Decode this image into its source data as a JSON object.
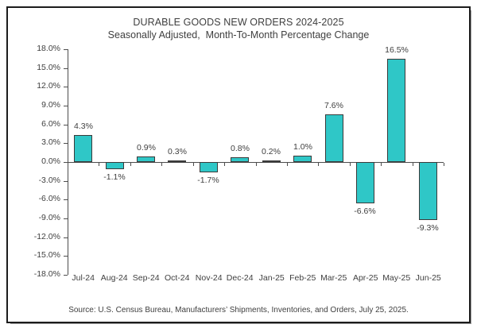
{
  "chart_data": {
    "type": "bar",
    "title": "DURABLE GOODS NEW ORDERS 2024-2025",
    "subtitle": "Seasonally Adjusted,  Month-To-Month Percentage Change",
    "categories": [
      "Jul-24",
      "Aug-24",
      "Sep-24",
      "Oct-24",
      "Nov-24",
      "Dec-24",
      "Jan-25",
      "Feb-25",
      "Mar-25",
      "Apr-25",
      "May-25",
      "Jun-25"
    ],
    "values": [
      4.3,
      -1.1,
      0.9,
      0.3,
      -1.7,
      0.8,
      0.2,
      1.0,
      7.6,
      -6.6,
      16.5,
      -9.3
    ],
    "value_labels": [
      "4.3%",
      "-1.1%",
      "0.9%",
      "0.3%",
      "-1.7%",
      "0.8%",
      "0.2%",
      "1.0%",
      "7.6%",
      "-6.6%",
      "16.5%",
      "-9.3%"
    ],
    "xlabel": "",
    "ylabel": "",
    "ylim": [
      -18,
      18
    ],
    "ytick_step": 3,
    "ytick_labels": [
      "18.0%",
      "15.0%",
      "12.0%",
      "9.0%",
      "6.0%",
      "3.0%",
      "0.0%",
      "-3.0%",
      "-6.0%",
      "-9.0%",
      "-12.0%",
      "-15.0%",
      "-18.0%"
    ],
    "grid": false,
    "legend": "none",
    "bar_color": "#2FC7C7",
    "bar_border_color": "#3A3A3A",
    "axis_color": "#4D4D4D",
    "text_color": "#3F3F3F"
  },
  "footer": {
    "source_note": "Source: U.S. Census Bureau, Manufacturers’ Shipments, Inventories, and Orders, July 25, 2025."
  }
}
